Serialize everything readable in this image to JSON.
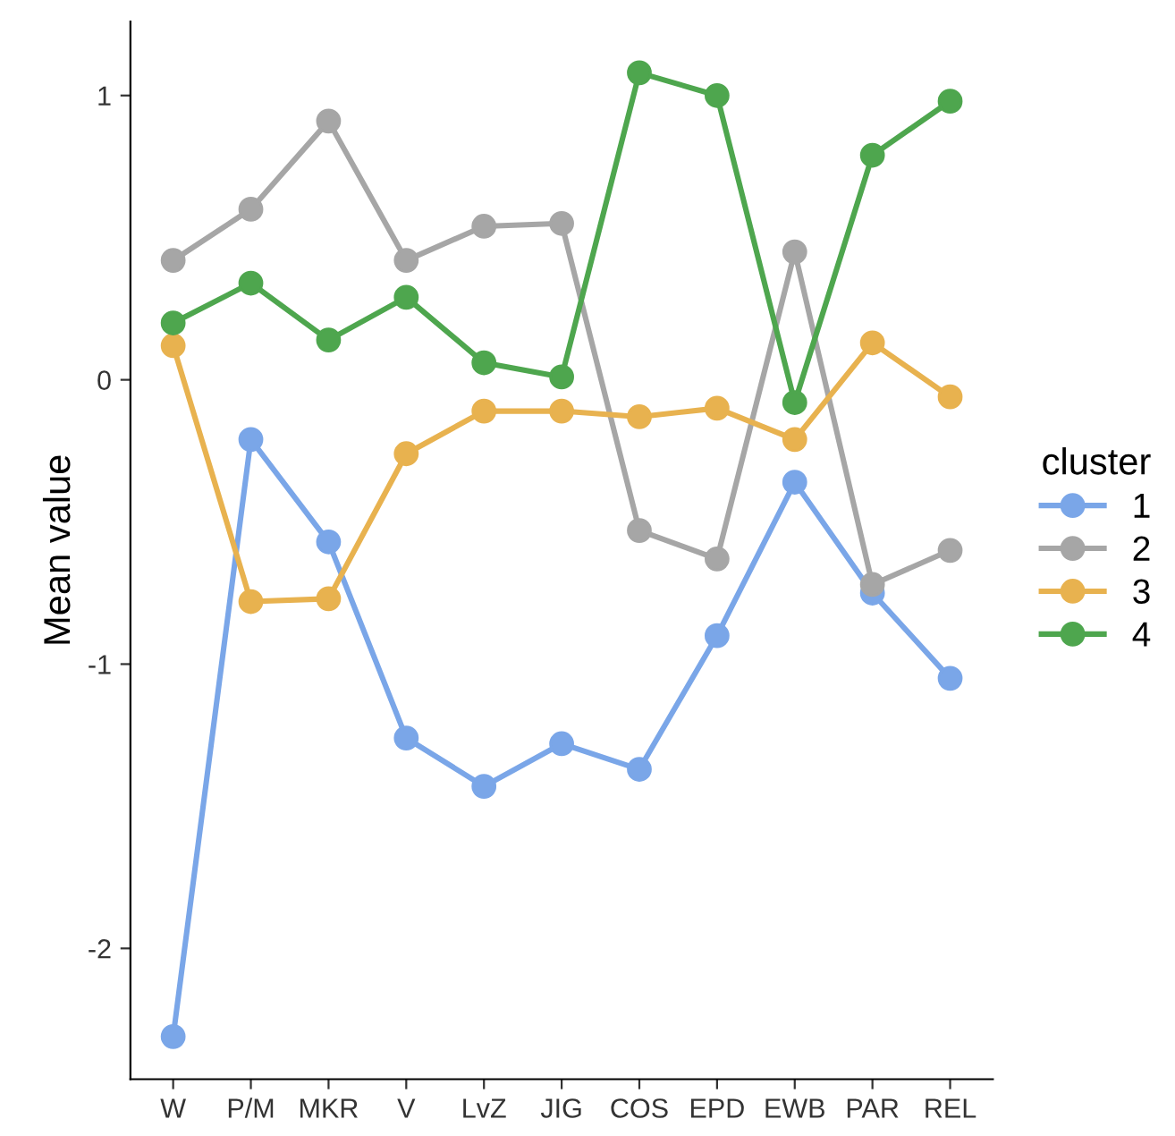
{
  "chart_data": {
    "type": "line",
    "ylabel": "Mean value",
    "legend_title": "cluster",
    "legend": "right",
    "marker": "circle",
    "line_style": "solid",
    "grid": false,
    "categories": [
      "W",
      "P/M",
      "MKR",
      "V",
      "LvZ",
      "JIG",
      "COS",
      "EPD",
      "EWB",
      "PAR",
      "REL"
    ],
    "ylim": [
      -2.46,
      1.26
    ],
    "yticks": [
      -2,
      -1,
      0,
      1
    ],
    "series": [
      {
        "name": "1",
        "color": "#7aa6e8",
        "values": [
          -2.31,
          -0.21,
          -0.57,
          -1.26,
          -1.43,
          -1.28,
          -1.37,
          -0.9,
          -0.36,
          -0.75,
          -1.05
        ]
      },
      {
        "name": "2",
        "color": "#a6a6a6",
        "values": [
          0.42,
          0.6,
          0.91,
          0.42,
          0.54,
          0.55,
          -0.53,
          -0.63,
          0.45,
          -0.72,
          -0.6
        ]
      },
      {
        "name": "3",
        "color": "#e8b24f",
        "values": [
          0.12,
          -0.78,
          -0.77,
          -0.26,
          -0.11,
          -0.11,
          -0.13,
          -0.1,
          -0.21,
          0.13,
          -0.06
        ]
      },
      {
        "name": "4",
        "color": "#4ea64e",
        "values": [
          0.2,
          0.34,
          0.14,
          0.29,
          0.06,
          0.01,
          1.08,
          1.0,
          -0.08,
          0.79,
          0.98
        ]
      }
    ]
  }
}
